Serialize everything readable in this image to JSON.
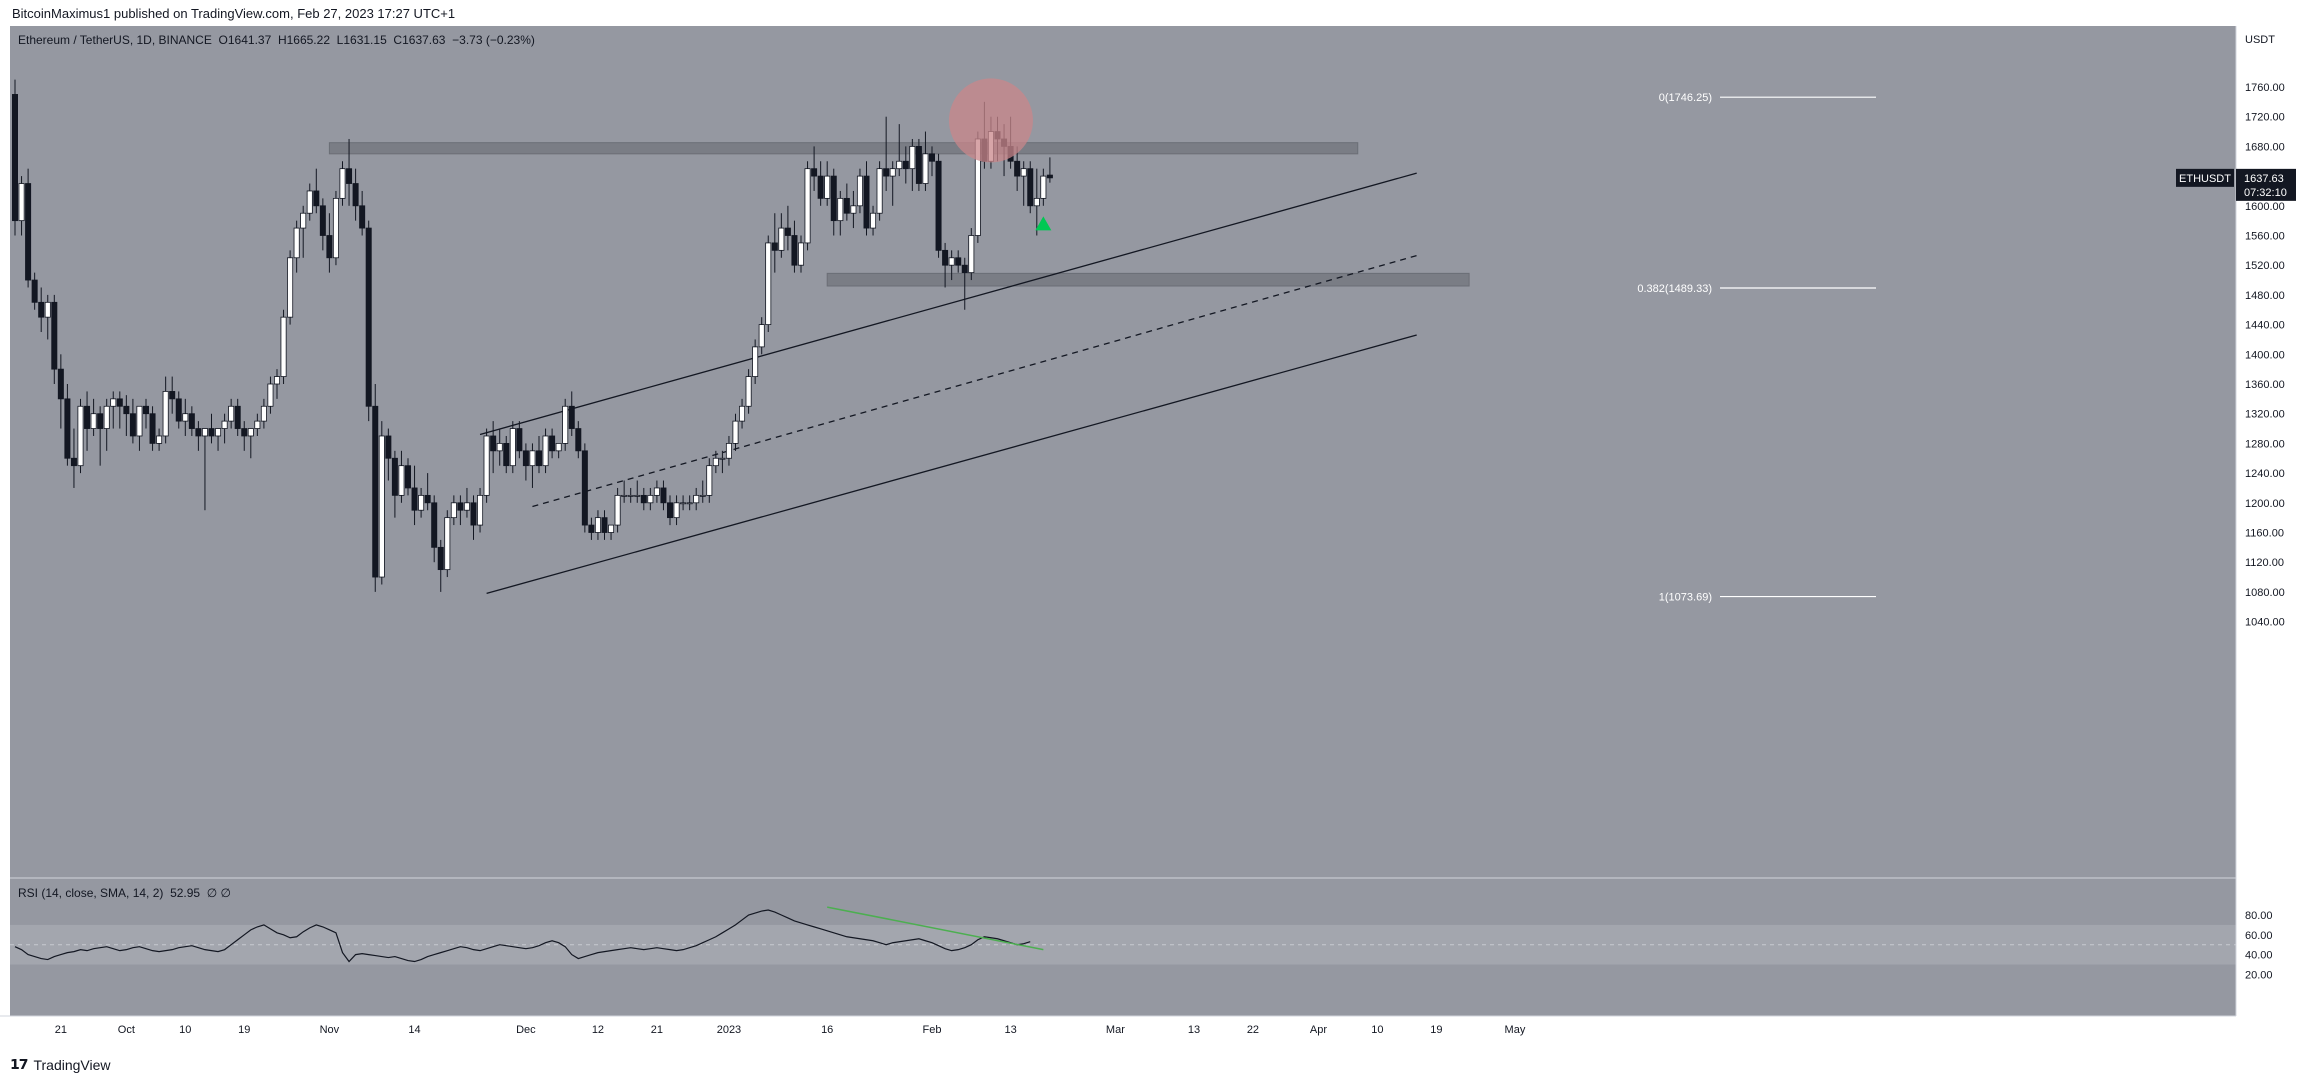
{
  "header": {
    "published": "BitcoinMaximus1 published on TradingView.com, Feb 27, 2023 17:27 UTC+1"
  },
  "legend": {
    "symbol": "Ethereum / TetherUS, 1D, BINANCE",
    "open_label": "O",
    "open": "1641.37",
    "high_label": "H",
    "high": "1665.22",
    "low_label": "L",
    "low": "1631.15",
    "close_label": "C",
    "close": "1637.63",
    "change": "−3.73 (−0.23%)"
  },
  "price_tag": {
    "symbol": "ETHUSDT",
    "price": "1637.63",
    "countdown": "07:32:10"
  },
  "rsi_legend": {
    "text": "RSI (14, close, SMA, 14, 2)",
    "value": "52.95",
    "extra": "∅ ∅"
  },
  "footer": {
    "brand": "TradingView"
  },
  "colors": {
    "background": "#9598a1",
    "up": "#ffffff",
    "down": "#131722",
    "zone": "#7a7d85",
    "highlight": "#c9878b",
    "rsi_trend": "#4caf50",
    "marker": "#00c853"
  },
  "chart_data": {
    "type": "candlestick",
    "ylabel": "USDT",
    "y_ticks": [
      1040,
      1080,
      1120,
      1160,
      1200,
      1240,
      1280,
      1320,
      1360,
      1400,
      1440,
      1480,
      1520,
      1560,
      1600,
      1640,
      1680,
      1720,
      1760
    ],
    "x_ticks": [
      {
        "label": "21",
        "day": 7
      },
      {
        "label": "Oct",
        "day": 17
      },
      {
        "label": "10",
        "day": 26
      },
      {
        "label": "19",
        "day": 35
      },
      {
        "label": "Nov",
        "day": 48
      },
      {
        "label": "14",
        "day": 61
      },
      {
        "label": "Dec",
        "day": 78
      },
      {
        "label": "12",
        "day": 89
      },
      {
        "label": "21",
        "day": 98
      },
      {
        "label": "2023",
        "day": 109
      },
      {
        "label": "16",
        "day": 124
      },
      {
        "label": "Feb",
        "day": 140
      },
      {
        "label": "13",
        "day": 152
      },
      {
        "label": "Mar",
        "day": 168
      },
      {
        "label": "13",
        "day": 180
      },
      {
        "label": "22",
        "day": 189
      },
      {
        "label": "Apr",
        "day": 199
      },
      {
        "label": "10",
        "day": 208
      },
      {
        "label": "19",
        "day": 217
      },
      {
        "label": "May",
        "day": 229
      }
    ],
    "ohlc": [
      [
        1750,
        1770,
        1560,
        1580
      ],
      [
        1580,
        1640,
        1560,
        1630
      ],
      [
        1630,
        1650,
        1490,
        1500
      ],
      [
        1500,
        1510,
        1460,
        1470
      ],
      [
        1470,
        1490,
        1430,
        1450
      ],
      [
        1450,
        1480,
        1420,
        1470
      ],
      [
        1470,
        1480,
        1360,
        1380
      ],
      [
        1380,
        1400,
        1300,
        1340
      ],
      [
        1340,
        1360,
        1250,
        1260
      ],
      [
        1260,
        1300,
        1220,
        1250
      ],
      [
        1250,
        1340,
        1240,
        1330
      ],
      [
        1330,
        1350,
        1270,
        1300
      ],
      [
        1300,
        1340,
        1290,
        1320
      ],
      [
        1320,
        1330,
        1250,
        1300
      ],
      [
        1300,
        1340,
        1270,
        1330
      ],
      [
        1330,
        1350,
        1300,
        1340
      ],
      [
        1340,
        1350,
        1300,
        1330
      ],
      [
        1330,
        1345,
        1290,
        1320
      ],
      [
        1320,
        1340,
        1280,
        1290
      ],
      [
        1290,
        1330,
        1270,
        1330
      ],
      [
        1330,
        1340,
        1300,
        1320
      ],
      [
        1320,
        1330,
        1270,
        1280
      ],
      [
        1280,
        1300,
        1270,
        1290
      ],
      [
        1290,
        1370,
        1280,
        1350
      ],
      [
        1350,
        1370,
        1320,
        1340
      ],
      [
        1340,
        1350,
        1300,
        1310
      ],
      [
        1310,
        1340,
        1290,
        1320
      ],
      [
        1320,
        1330,
        1290,
        1300
      ],
      [
        1300,
        1310,
        1270,
        1290
      ],
      [
        1290,
        1300,
        1190,
        1300
      ],
      [
        1300,
        1320,
        1280,
        1290
      ],
      [
        1290,
        1300,
        1270,
        1300
      ],
      [
        1300,
        1320,
        1280,
        1310
      ],
      [
        1310,
        1340,
        1300,
        1330
      ],
      [
        1330,
        1340,
        1290,
        1300
      ],
      [
        1300,
        1310,
        1270,
        1290
      ],
      [
        1290,
        1300,
        1260,
        1300
      ],
      [
        1300,
        1320,
        1290,
        1310
      ],
      [
        1310,
        1340,
        1300,
        1330
      ],
      [
        1330,
        1370,
        1320,
        1360
      ],
      [
        1360,
        1380,
        1340,
        1370
      ],
      [
        1370,
        1460,
        1360,
        1450
      ],
      [
        1450,
        1540,
        1440,
        1530
      ],
      [
        1530,
        1580,
        1510,
        1570
      ],
      [
        1570,
        1600,
        1530,
        1590
      ],
      [
        1590,
        1630,
        1580,
        1620
      ],
      [
        1620,
        1650,
        1590,
        1600
      ],
      [
        1600,
        1610,
        1540,
        1560
      ],
      [
        1560,
        1590,
        1510,
        1530
      ],
      [
        1530,
        1620,
        1520,
        1610
      ],
      [
        1610,
        1660,
        1600,
        1650
      ],
      [
        1650,
        1690,
        1600,
        1630
      ],
      [
        1630,
        1650,
        1580,
        1600
      ],
      [
        1600,
        1620,
        1560,
        1570
      ],
      [
        1570,
        1580,
        1310,
        1330
      ],
      [
        1330,
        1360,
        1080,
        1100
      ],
      [
        1100,
        1310,
        1090,
        1290
      ],
      [
        1290,
        1300,
        1230,
        1260
      ],
      [
        1260,
        1270,
        1180,
        1210
      ],
      [
        1210,
        1270,
        1200,
        1250
      ],
      [
        1250,
        1260,
        1210,
        1220
      ],
      [
        1220,
        1250,
        1170,
        1190
      ],
      [
        1190,
        1220,
        1180,
        1210
      ],
      [
        1210,
        1240,
        1190,
        1200
      ],
      [
        1200,
        1210,
        1120,
        1140
      ],
      [
        1140,
        1150,
        1080,
        1110
      ],
      [
        1110,
        1190,
        1100,
        1180
      ],
      [
        1180,
        1210,
        1170,
        1200
      ],
      [
        1200,
        1210,
        1170,
        1190
      ],
      [
        1190,
        1220,
        1180,
        1200
      ],
      [
        1200,
        1210,
        1150,
        1170
      ],
      [
        1170,
        1220,
        1160,
        1210
      ],
      [
        1210,
        1300,
        1200,
        1290
      ],
      [
        1290,
        1310,
        1240,
        1270
      ],
      [
        1270,
        1300,
        1250,
        1280
      ],
      [
        1280,
        1290,
        1240,
        1250
      ],
      [
        1250,
        1310,
        1240,
        1300
      ],
      [
        1300,
        1310,
        1260,
        1270
      ],
      [
        1270,
        1280,
        1230,
        1250
      ],
      [
        1250,
        1280,
        1220,
        1270
      ],
      [
        1270,
        1290,
        1240,
        1250
      ],
      [
        1250,
        1300,
        1240,
        1290
      ],
      [
        1290,
        1300,
        1260,
        1270
      ],
      [
        1270,
        1280,
        1260,
        1280
      ],
      [
        1280,
        1340,
        1270,
        1330
      ],
      [
        1330,
        1350,
        1290,
        1300
      ],
      [
        1300,
        1310,
        1260,
        1270
      ],
      [
        1270,
        1280,
        1160,
        1170
      ],
      [
        1170,
        1180,
        1150,
        1160
      ],
      [
        1160,
        1190,
        1150,
        1180
      ],
      [
        1180,
        1190,
        1150,
        1160
      ],
      [
        1160,
        1170,
        1150,
        1170
      ],
      [
        1170,
        1220,
        1160,
        1210
      ],
      [
        1210,
        1230,
        1200,
        1210
      ],
      [
        1210,
        1220,
        1200,
        1210
      ],
      [
        1210,
        1230,
        1200,
        1210
      ],
      [
        1210,
        1220,
        1190,
        1200
      ],
      [
        1200,
        1220,
        1190,
        1210
      ],
      [
        1210,
        1230,
        1200,
        1220
      ],
      [
        1220,
        1230,
        1190,
        1200
      ],
      [
        1200,
        1210,
        1170,
        1180
      ],
      [
        1180,
        1210,
        1170,
        1200
      ],
      [
        1200,
        1210,
        1190,
        1200
      ],
      [
        1200,
        1210,
        1190,
        1200
      ],
      [
        1200,
        1220,
        1190,
        1210
      ],
      [
        1210,
        1230,
        1200,
        1210
      ],
      [
        1210,
        1260,
        1200,
        1250
      ],
      [
        1250,
        1270,
        1240,
        1260
      ],
      [
        1260,
        1270,
        1240,
        1260
      ],
      [
        1260,
        1290,
        1250,
        1280
      ],
      [
        1280,
        1320,
        1270,
        1310
      ],
      [
        1310,
        1340,
        1300,
        1330
      ],
      [
        1330,
        1380,
        1320,
        1370
      ],
      [
        1370,
        1420,
        1360,
        1410
      ],
      [
        1410,
        1450,
        1400,
        1440
      ],
      [
        1440,
        1560,
        1430,
        1550
      ],
      [
        1550,
        1590,
        1510,
        1540
      ],
      [
        1540,
        1590,
        1530,
        1570
      ],
      [
        1570,
        1600,
        1540,
        1560
      ],
      [
        1560,
        1580,
        1510,
        1520
      ],
      [
        1520,
        1560,
        1510,
        1550
      ],
      [
        1550,
        1660,
        1540,
        1650
      ],
      [
        1650,
        1680,
        1620,
        1640
      ],
      [
        1640,
        1660,
        1600,
        1610
      ],
      [
        1610,
        1660,
        1600,
        1640
      ],
      [
        1640,
        1650,
        1560,
        1580
      ],
      [
        1580,
        1620,
        1560,
        1610
      ],
      [
        1610,
        1630,
        1580,
        1590
      ],
      [
        1590,
        1620,
        1570,
        1600
      ],
      [
        1600,
        1650,
        1590,
        1640
      ],
      [
        1640,
        1660,
        1560,
        1570
      ],
      [
        1570,
        1600,
        1560,
        1590
      ],
      [
        1590,
        1660,
        1580,
        1650
      ],
      [
        1650,
        1720,
        1620,
        1640
      ],
      [
        1640,
        1660,
        1600,
        1650
      ],
      [
        1650,
        1710,
        1640,
        1660
      ],
      [
        1660,
        1680,
        1630,
        1650
      ],
      [
        1650,
        1690,
        1620,
        1680
      ],
      [
        1680,
        1690,
        1620,
        1630
      ],
      [
        1630,
        1700,
        1620,
        1670
      ],
      [
        1670,
        1680,
        1640,
        1660
      ],
      [
        1660,
        1670,
        1530,
        1540
      ],
      [
        1540,
        1550,
        1490,
        1520
      ],
      [
        1520,
        1540,
        1500,
        1530
      ],
      [
        1530,
        1540,
        1510,
        1520
      ],
      [
        1520,
        1530,
        1460,
        1510
      ],
      [
        1510,
        1570,
        1500,
        1560
      ],
      [
        1560,
        1700,
        1550,
        1690
      ],
      [
        1690,
        1740,
        1650,
        1660
      ],
      [
        1660,
        1720,
        1650,
        1700
      ],
      [
        1700,
        1720,
        1660,
        1690
      ],
      [
        1690,
        1710,
        1640,
        1680
      ],
      [
        1680,
        1720,
        1650,
        1660
      ],
      [
        1660,
        1680,
        1620,
        1640
      ],
      [
        1640,
        1660,
        1600,
        1650
      ],
      [
        1650,
        1660,
        1590,
        1600
      ],
      [
        1600,
        1650,
        1560,
        1610
      ],
      [
        1610,
        1650,
        1600,
        1640
      ],
      [
        1641.37,
        1665.22,
        1631.15,
        1637.63
      ]
    ],
    "zones": [
      {
        "from_day": 48,
        "to_day": 205,
        "y_low": 1670,
        "y_high": 1685
      },
      {
        "from_day": 124,
        "to_day": 222,
        "y_low": 1492,
        "y_high": 1509
      }
    ],
    "fibonacci": [
      {
        "label": "0(1746.25)",
        "value": 1746.25
      },
      {
        "label": "0.382(1489.33)",
        "value": 1489.33
      },
      {
        "label": "1(1073.69)",
        "value": 1073.69
      }
    ],
    "channel": {
      "upper": [
        [
          71,
          1292
        ],
        [
          214,
          1644
        ]
      ],
      "middle": [
        [
          79,
          1195
        ],
        [
          214,
          1533
        ]
      ],
      "lower": [
        [
          72,
          1078
        ],
        [
          214,
          1426
        ]
      ]
    },
    "rsi": {
      "y_ticks": [
        20,
        40,
        60,
        80
      ],
      "band": [
        30,
        70
      ],
      "values": [
        48,
        45,
        40,
        38,
        36,
        35,
        38,
        40,
        42,
        43,
        45,
        44,
        46,
        47,
        48,
        46,
        44,
        45,
        47,
        48,
        46,
        44,
        43,
        44,
        45,
        47,
        48,
        49,
        47,
        45,
        44,
        43,
        45,
        50,
        55,
        60,
        65,
        68,
        70,
        66,
        62,
        60,
        57,
        58,
        63,
        67,
        70,
        68,
        65,
        62,
        42,
        33,
        40,
        41,
        40,
        39,
        38,
        37,
        38,
        36,
        34,
        33,
        35,
        38,
        40,
        42,
        44,
        46,
        48,
        47,
        45,
        44,
        46,
        48,
        50,
        49,
        48,
        47,
        46,
        47,
        49,
        52,
        54,
        52,
        48,
        40,
        36,
        38,
        40,
        42,
        43,
        44,
        45,
        46,
        47,
        46,
        45,
        46,
        47,
        46,
        45,
        44,
        45,
        47,
        49,
        52,
        55,
        58,
        62,
        66,
        70,
        75,
        80,
        82,
        84,
        85,
        83,
        80,
        77,
        74,
        72,
        70,
        68,
        66,
        64,
        62,
        60,
        58,
        57,
        56,
        55,
        54,
        52,
        50,
        52,
        53,
        54,
        55,
        56,
        54,
        52,
        49,
        46,
        44,
        45,
        47,
        50,
        55,
        58,
        57,
        56,
        54,
        52,
        50,
        51,
        53
      ],
      "trendline": [
        [
          124,
          88
        ],
        [
          157,
          45
        ]
      ]
    },
    "annotations": {
      "circle": {
        "day": 149,
        "value": 1715
      },
      "marker": {
        "day": 157,
        "value": 1575
      }
    }
  }
}
